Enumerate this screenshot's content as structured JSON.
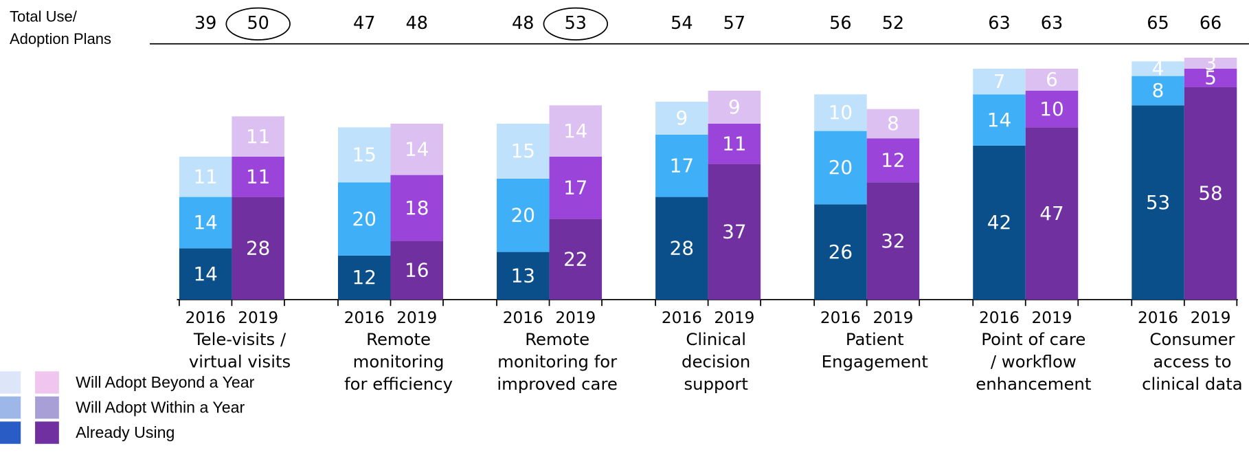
{
  "chart_data": {
    "type": "stacked_bar",
    "totals_label": [
      "Total Use/",
      "Adoption Plans"
    ],
    "series": [
      {
        "name": "Already Using",
        "colors": [
          "#0b4f8a",
          "#7030a0"
        ],
        "legend_colors": [
          "#2a5cc6",
          "#7030a0"
        ]
      },
      {
        "name": "Will Adopt Within a Year",
        "colors": [
          "#3fb0f8",
          "#9a44d9"
        ],
        "legend_colors": [
          "#9db8e8",
          "#a89fd6"
        ]
      },
      {
        "name": "Will Adopt Beyond a Year",
        "colors": [
          "#bfe1fb",
          "#dcc0f1"
        ],
        "legend_colors": [
          "#dce6f8",
          "#f0c6ef"
        ]
      }
    ],
    "groups": [
      {
        "label": [
          "Tele-visits /",
          "virtual visits"
        ],
        "bars": [
          {
            "year": "2016",
            "total": 39,
            "circled": false,
            "values": [
              14,
              14,
              11
            ]
          },
          {
            "year": "2019",
            "total": 50,
            "circled": true,
            "values": [
              28,
              11,
              11
            ]
          }
        ]
      },
      {
        "label": [
          "Remote",
          "monitoring",
          "for efficiency"
        ],
        "bars": [
          {
            "year": "2016",
            "total": 47,
            "circled": false,
            "values": [
              12,
              20,
              15
            ]
          },
          {
            "year": "2019",
            "total": 48,
            "circled": false,
            "values": [
              16,
              18,
              14
            ]
          }
        ]
      },
      {
        "label": [
          "Remote",
          "monitoring for",
          "improved care"
        ],
        "bars": [
          {
            "year": "2016",
            "total": 48,
            "circled": false,
            "values": [
              13,
              20,
              15
            ]
          },
          {
            "year": "2019",
            "total": 53,
            "circled": true,
            "values": [
              22,
              17,
              14
            ]
          }
        ]
      },
      {
        "label": [
          "Clinical",
          "decision",
          "support"
        ],
        "bars": [
          {
            "year": "2016",
            "total": 54,
            "circled": false,
            "values": [
              28,
              17,
              9
            ]
          },
          {
            "year": "2019",
            "total": 57,
            "circled": false,
            "values": [
              37,
              11,
              9
            ]
          }
        ]
      },
      {
        "label": [
          "Patient",
          "Engagement"
        ],
        "bars": [
          {
            "year": "2016",
            "total": 56,
            "circled": false,
            "values": [
              26,
              20,
              10
            ]
          },
          {
            "year": "2019",
            "total": 52,
            "circled": false,
            "values": [
              32,
              12,
              8
            ]
          }
        ]
      },
      {
        "label": [
          "Point of care",
          "/ workflow",
          "enhancement"
        ],
        "bars": [
          {
            "year": "2016",
            "total": 63,
            "circled": false,
            "values": [
              42,
              14,
              7
            ]
          },
          {
            "year": "2019",
            "total": 63,
            "circled": false,
            "values": [
              47,
              10,
              6
            ]
          }
        ]
      },
      {
        "label": [
          "Consumer",
          "access to",
          "clinical data"
        ],
        "bars": [
          {
            "year": "2016",
            "total": 65,
            "circled": false,
            "values": [
              53,
              8,
              4
            ]
          },
          {
            "year": "2019",
            "total": 66,
            "circled": false,
            "values": [
              58,
              5,
              3
            ]
          }
        ]
      }
    ]
  }
}
